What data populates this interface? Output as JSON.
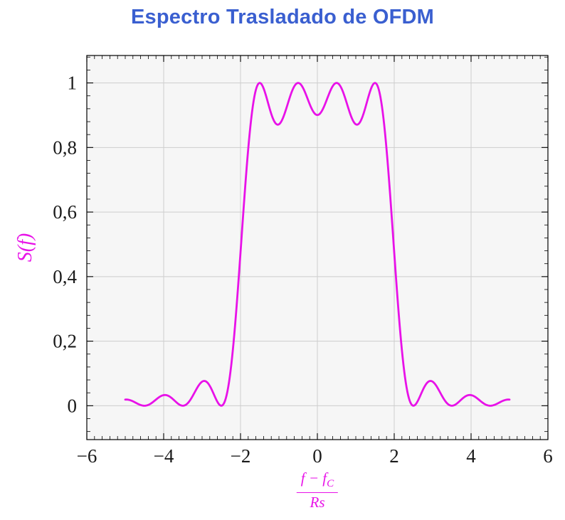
{
  "title": "Espectro Trasladado de OFDM",
  "title_color": "#3a5fd0",
  "ylabel_text": "S(f)",
  "xlabel_parts": {
    "numerator_main": "f − f",
    "numerator_sub": "C",
    "denominator": "Rs"
  },
  "chart_data": {
    "type": "line",
    "title": "Espectro Trasladado de OFDM",
    "xlabel": "(f − f_C) / Rs",
    "ylabel": "S(f)",
    "xlim": [
      -6,
      6
    ],
    "ylim": [
      -0.105,
      1.085
    ],
    "x_ticks": [
      -6,
      -4,
      -2,
      0,
      2,
      4,
      6
    ],
    "x_tick_labels": [
      "−6",
      "−4",
      "−2",
      "0",
      "2",
      "4",
      "6"
    ],
    "y_ticks": [
      0,
      0.2,
      0.4,
      0.6,
      0.8,
      1
    ],
    "y_tick_labels": [
      "0",
      "0,2",
      "0,4",
      "0,6",
      "0,8",
      "1"
    ],
    "x_minor_step": 0.2,
    "y_minor_step": 0.04,
    "grid": true,
    "legend": "none",
    "line_color": "#e812e8",
    "plot_bg": "#f6f6f6",
    "grid_color": "#cdcdcd",
    "axis_color": "#000000",
    "tick_label_color": "#1a1a1a",
    "series": [
      {
        "name": "S(f)",
        "function": "S(f) = sum over k of sinc^2(f - k), OFDM spectrum with 4 subcarriers",
        "subcarriers": [
          -1.5,
          -0.5,
          0.5,
          1.5
        ],
        "x_range": [
          -5,
          5
        ],
        "samples": 501,
        "key_points": [
          {
            "x": -5.0,
            "y": 0.019
          },
          {
            "x": -4.5,
            "y": 0.0
          },
          {
            "x": -4.0,
            "y": 0.033
          },
          {
            "x": -3.5,
            "y": 0.0
          },
          {
            "x": -3.0,
            "y": 0.075
          },
          {
            "x": -2.5,
            "y": 0.0
          },
          {
            "x": -2.0,
            "y": 0.475
          },
          {
            "x": -1.5,
            "y": 1.0
          },
          {
            "x": -1.0,
            "y": 0.872
          },
          {
            "x": -0.5,
            "y": 1.0
          },
          {
            "x": 0.0,
            "y": 0.9
          },
          {
            "x": 0.5,
            "y": 1.0
          },
          {
            "x": 1.0,
            "y": 0.872
          },
          {
            "x": 1.5,
            "y": 1.0
          },
          {
            "x": 2.0,
            "y": 0.475
          },
          {
            "x": 2.5,
            "y": 0.0
          },
          {
            "x": 3.0,
            "y": 0.075
          },
          {
            "x": 3.5,
            "y": 0.0
          },
          {
            "x": 4.0,
            "y": 0.033
          },
          {
            "x": 4.5,
            "y": 0.0
          },
          {
            "x": 5.0,
            "y": 0.019
          }
        ]
      }
    ]
  }
}
